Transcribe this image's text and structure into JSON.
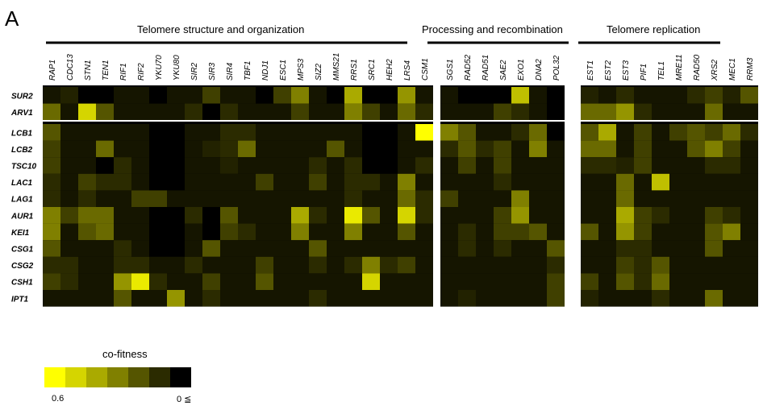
{
  "panel_label": "A",
  "chart_data": {
    "type": "heatmap",
    "value_label": "co-fitness",
    "scale": {
      "min": 0,
      "max": 0.6,
      "min_label": "0 ≦",
      "max_label": "0.6",
      "legend_steps": [
        0.6,
        0.5,
        0.4,
        0.3,
        0.2,
        0.1,
        0.0
      ]
    },
    "colors": {
      "high": "#ffff00",
      "low": "#000000"
    },
    "groups": [
      {
        "title": "Telomere structure and organization",
        "columns": [
          "RAP1",
          "CDC13",
          "STN1",
          "TEN1",
          "RIF1",
          "RIF2",
          "YKU70",
          "YKU80",
          "SIR2",
          "SIR3",
          "SIR4",
          "TBF1",
          "NDJ1",
          "ESC1",
          "MPS3",
          "SIZ2",
          "MMS21",
          "RRS1",
          "SRC1",
          "HEH2",
          "LRS4",
          "CSM1"
        ]
      },
      {
        "title": "Processing and recombination",
        "columns": [
          "SGS1",
          "RAD52",
          "RAD51",
          "SAE2",
          "EXO1",
          "DNA2",
          "POL32"
        ]
      },
      {
        "title": "Telomere replication",
        "columns": [
          "EST1",
          "EST2",
          "EST3",
          "PIF1",
          "TEL1",
          "MRE11",
          "RAD50",
          "XRS2",
          "MEC1",
          "RRM3"
        ]
      }
    ],
    "row_blocks": [
      {
        "rows": [
          "SUR2",
          "ARV1"
        ]
      },
      {
        "rows": [
          "LCB1",
          "LCB2",
          "TSC10",
          "LAC1",
          "LAG1",
          "AUR1",
          "KEI1",
          "CSG1",
          "CSG2",
          "CSH1",
          "IPT1"
        ]
      }
    ],
    "values": {
      "SUR2": [
        0.05,
        0.08,
        0.0,
        0.0,
        0.05,
        0.05,
        0.0,
        0.05,
        0.05,
        0.15,
        0.05,
        0.05,
        0.0,
        0.15,
        0.3,
        0.05,
        0.0,
        0.4,
        0.0,
        0.0,
        0.35,
        0.05,
        0.05,
        0.0,
        0.0,
        0.0,
        0.45,
        0.05,
        0.0,
        0.08,
        0.05,
        0.1,
        0.05,
        0.05,
        0.05,
        0.1,
        0.15,
        0.08,
        0.2
      ],
      "ARV1": [
        0.25,
        0.05,
        0.5,
        0.2,
        0.05,
        0.05,
        0.05,
        0.05,
        0.1,
        0.0,
        0.1,
        0.05,
        0.05,
        0.05,
        0.15,
        0.05,
        0.05,
        0.3,
        0.15,
        0.05,
        0.25,
        0.1,
        0.05,
        0.05,
        0.05,
        0.15,
        0.1,
        0.05,
        0.0,
        0.25,
        0.25,
        0.35,
        0.1,
        0.05,
        0.05,
        0.05,
        0.25,
        0.05,
        0.05
      ],
      "LCB1": [
        0.2,
        0.05,
        0.05,
        0.05,
        0.05,
        0.05,
        0.0,
        0.0,
        0.05,
        0.05,
        0.1,
        0.1,
        0.05,
        0.05,
        0.05,
        0.05,
        0.05,
        0.05,
        0.0,
        0.0,
        0.05,
        0.6,
        0.3,
        0.2,
        0.05,
        0.05,
        0.1,
        0.25,
        0.0,
        0.2,
        0.4,
        0.05,
        0.15,
        0.05,
        0.15,
        0.2,
        0.15,
        0.25,
        0.1
      ],
      "LCB2": [
        0.15,
        0.05,
        0.05,
        0.25,
        0.05,
        0.05,
        0.0,
        0.0,
        0.05,
        0.08,
        0.1,
        0.25,
        0.05,
        0.05,
        0.05,
        0.05,
        0.2,
        0.05,
        0.0,
        0.0,
        0.05,
        0.05,
        0.1,
        0.2,
        0.1,
        0.15,
        0.05,
        0.3,
        0.05,
        0.25,
        0.25,
        0.05,
        0.15,
        0.05,
        0.05,
        0.2,
        0.3,
        0.15,
        0.05
      ],
      "TSC10": [
        0.15,
        0.05,
        0.05,
        0.0,
        0.1,
        0.05,
        0.0,
        0.0,
        0.05,
        0.05,
        0.08,
        0.05,
        0.05,
        0.05,
        0.05,
        0.1,
        0.05,
        0.1,
        0.0,
        0.0,
        0.05,
        0.1,
        0.05,
        0.15,
        0.05,
        0.15,
        0.05,
        0.05,
        0.05,
        0.1,
        0.1,
        0.08,
        0.15,
        0.05,
        0.05,
        0.05,
        0.1,
        0.1,
        0.05
      ],
      "LAC1": [
        0.1,
        0.05,
        0.15,
        0.1,
        0.1,
        0.05,
        0.0,
        0.0,
        0.05,
        0.05,
        0.05,
        0.05,
        0.15,
        0.05,
        0.05,
        0.15,
        0.05,
        0.1,
        0.1,
        0.05,
        0.3,
        0.05,
        0.05,
        0.05,
        0.05,
        0.1,
        0.05,
        0.05,
        0.05,
        0.05,
        0.05,
        0.25,
        0.05,
        0.45,
        0.05,
        0.05,
        0.05,
        0.05,
        0.05
      ],
      "LAG1": [
        0.1,
        0.05,
        0.1,
        0.05,
        0.05,
        0.15,
        0.15,
        0.05,
        0.05,
        0.05,
        0.05,
        0.05,
        0.05,
        0.05,
        0.05,
        0.05,
        0.05,
        0.1,
        0.05,
        0.05,
        0.25,
        0.1,
        0.15,
        0.05,
        0.05,
        0.05,
        0.3,
        0.05,
        0.05,
        0.05,
        0.05,
        0.25,
        0.05,
        0.05,
        0.05,
        0.05,
        0.05,
        0.05,
        0.05
      ],
      "AUR1": [
        0.3,
        0.15,
        0.25,
        0.25,
        0.05,
        0.05,
        0.0,
        0.0,
        0.1,
        0.0,
        0.2,
        0.05,
        0.05,
        0.05,
        0.4,
        0.1,
        0.05,
        0.55,
        0.2,
        0.05,
        0.5,
        0.1,
        0.05,
        0.05,
        0.05,
        0.15,
        0.35,
        0.05,
        0.05,
        0.05,
        0.05,
        0.4,
        0.15,
        0.1,
        0.05,
        0.05,
        0.15,
        0.1,
        0.05
      ],
      "KEI1": [
        0.3,
        0.05,
        0.2,
        0.25,
        0.05,
        0.05,
        0.0,
        0.0,
        0.05,
        0.0,
        0.15,
        0.1,
        0.05,
        0.05,
        0.3,
        0.05,
        0.05,
        0.3,
        0.05,
        0.05,
        0.2,
        0.05,
        0.05,
        0.1,
        0.05,
        0.15,
        0.15,
        0.2,
        0.05,
        0.2,
        0.05,
        0.35,
        0.15,
        0.05,
        0.05,
        0.05,
        0.2,
        0.3,
        0.05
      ],
      "CSG1": [
        0.2,
        0.05,
        0.05,
        0.05,
        0.1,
        0.05,
        0.0,
        0.0,
        0.05,
        0.2,
        0.05,
        0.05,
        0.05,
        0.05,
        0.05,
        0.2,
        0.05,
        0.05,
        0.05,
        0.05,
        0.05,
        0.05,
        0.05,
        0.1,
        0.05,
        0.1,
        0.05,
        0.05,
        0.2,
        0.05,
        0.05,
        0.1,
        0.1,
        0.05,
        0.05,
        0.05,
        0.2,
        0.05,
        0.05
      ],
      "CSG2": [
        0.1,
        0.1,
        0.05,
        0.05,
        0.1,
        0.1,
        0.05,
        0.05,
        0.1,
        0.05,
        0.05,
        0.05,
        0.15,
        0.05,
        0.05,
        0.1,
        0.05,
        0.1,
        0.3,
        0.1,
        0.15,
        0.05,
        0.05,
        0.05,
        0.05,
        0.05,
        0.05,
        0.05,
        0.1,
        0.05,
        0.05,
        0.15,
        0.1,
        0.2,
        0.05,
        0.05,
        0.05,
        0.05,
        0.05
      ],
      "CSH1": [
        0.15,
        0.1,
        0.05,
        0.05,
        0.35,
        0.55,
        0.1,
        0.05,
        0.05,
        0.15,
        0.05,
        0.05,
        0.2,
        0.05,
        0.05,
        0.05,
        0.05,
        0.05,
        0.5,
        0.05,
        0.05,
        0.05,
        0.05,
        0.05,
        0.05,
        0.05,
        0.05,
        0.05,
        0.15,
        0.15,
        0.05,
        0.2,
        0.1,
        0.25,
        0.05,
        0.05,
        0.05,
        0.05,
        0.05
      ],
      "IPT1": [
        0.05,
        0.05,
        0.05,
        0.05,
        0.2,
        0.05,
        0.05,
        0.35,
        0.05,
        0.1,
        0.05,
        0.05,
        0.05,
        0.05,
        0.05,
        0.1,
        0.05,
        0.05,
        0.05,
        0.05,
        0.05,
        0.05,
        0.05,
        0.08,
        0.05,
        0.05,
        0.05,
        0.05,
        0.15,
        0.08,
        0.05,
        0.05,
        0.05,
        0.1,
        0.05,
        0.05,
        0.25,
        0.05,
        0.05
      ]
    }
  }
}
